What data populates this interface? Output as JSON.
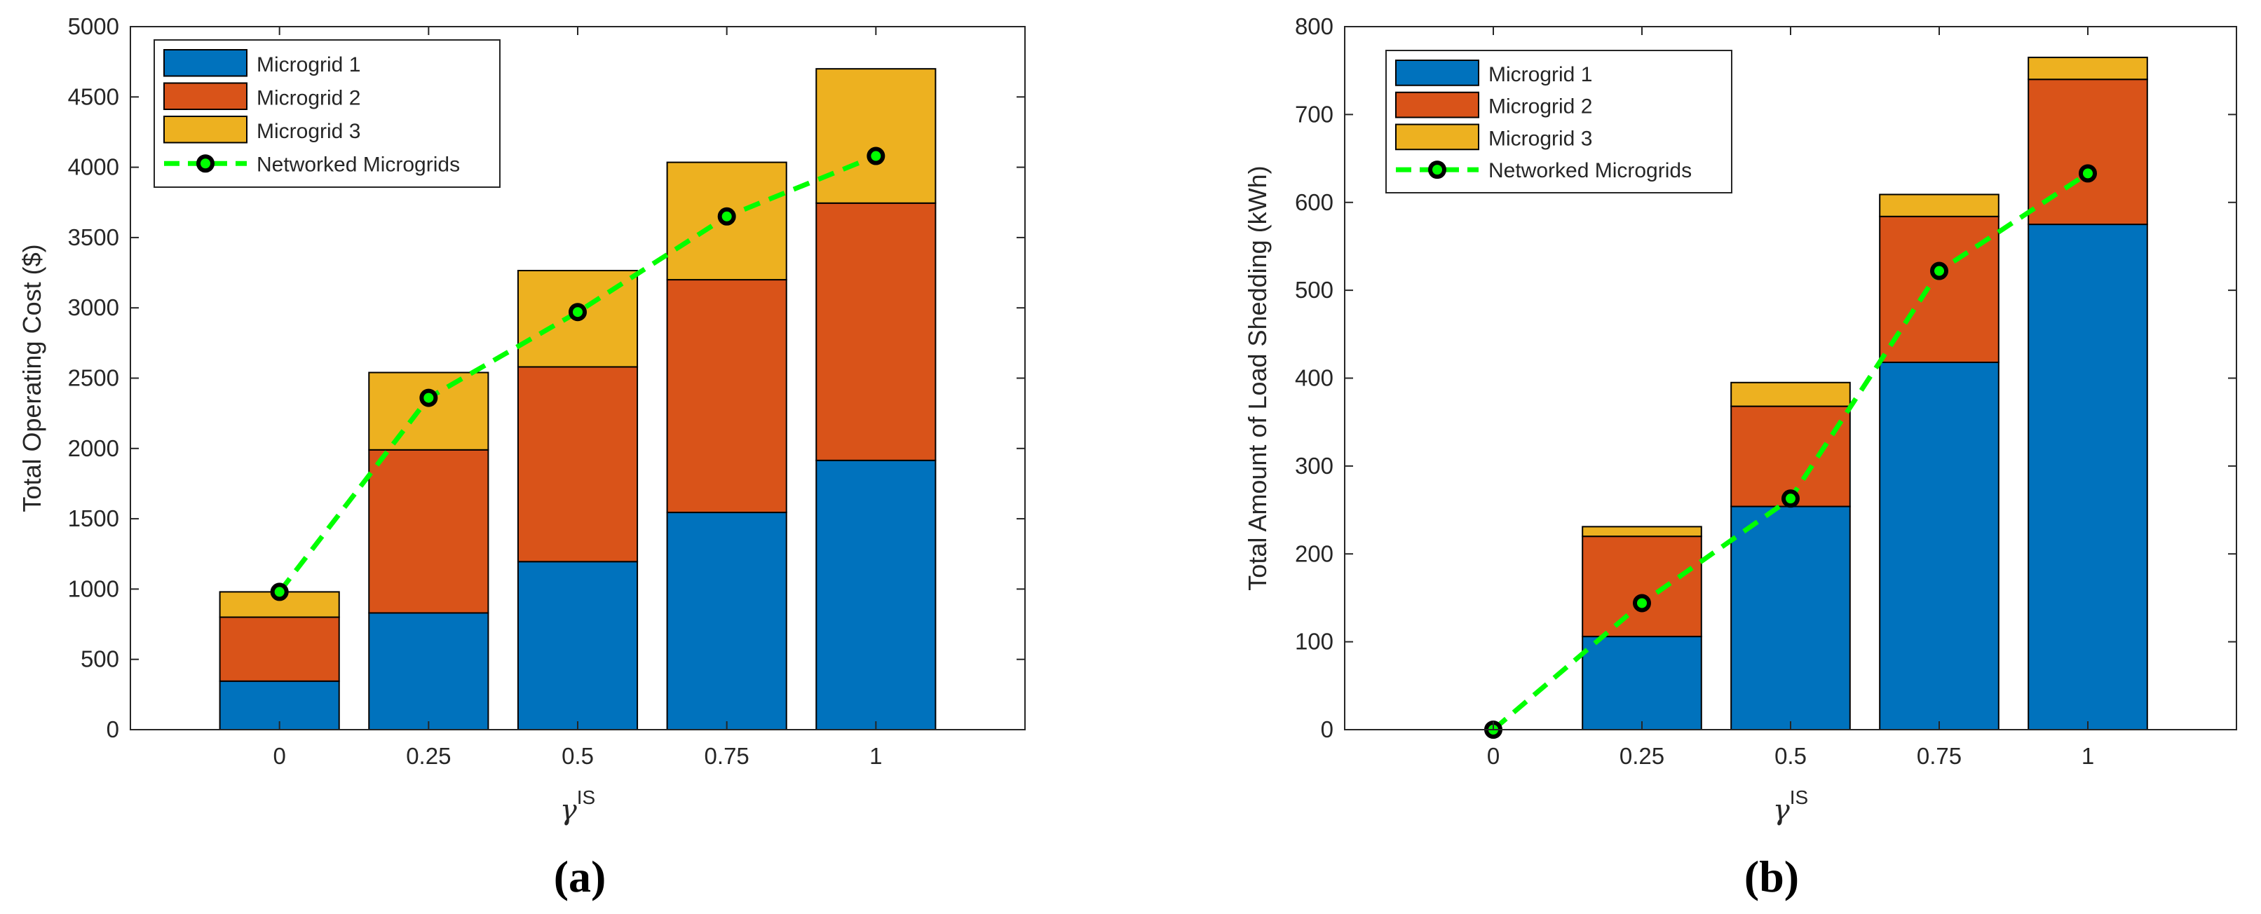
{
  "chart_data": [
    {
      "type": "bar",
      "stacked": true,
      "caption": "(a)",
      "title": "",
      "xlabel_base": "γ",
      "xlabel_sup": "IS",
      "ylabel": "Total Operating Cost ($)",
      "categories": [
        "0",
        "0.25",
        "0.5",
        "0.75",
        "1"
      ],
      "xlim": [
        -1,
        5
      ],
      "ylim": [
        0,
        5000
      ],
      "yticks": [
        0,
        500,
        1000,
        1500,
        2000,
        2500,
        3000,
        3500,
        4000,
        4500,
        5000
      ],
      "series": [
        {
          "name": "Microgrid 1",
          "color": "#0072bd",
          "values": [
            345,
            830,
            1195,
            1545,
            1915
          ]
        },
        {
          "name": "Microgrid 2",
          "color": "#d95319",
          "values": [
            455,
            1160,
            1385,
            1655,
            1830
          ]
        },
        {
          "name": "Microgrid 3",
          "color": "#edb120",
          "values": [
            180,
            550,
            685,
            835,
            955
          ]
        }
      ],
      "line_series": {
        "name": "Networked Microgrids",
        "line_color": "#00ff00",
        "marker_edge": "#000000",
        "values": [
          980,
          2360,
          2970,
          3650,
          4080
        ]
      },
      "legend_position": "top-left"
    },
    {
      "type": "bar",
      "stacked": true,
      "caption": "(b)",
      "title": "",
      "xlabel_base": "γ",
      "xlabel_sup": "IS",
      "ylabel": "Total Amount of Load Shedding (kWh)",
      "categories": [
        "0",
        "0.25",
        "0.5",
        "0.75",
        "1"
      ],
      "xlim": [
        -1,
        5
      ],
      "ylim": [
        0,
        800
      ],
      "yticks": [
        0,
        100,
        200,
        300,
        400,
        500,
        600,
        700,
        800
      ],
      "series": [
        {
          "name": "Microgrid 1",
          "color": "#0072bd",
          "values": [
            0,
            106,
            254,
            418,
            575
          ]
        },
        {
          "name": "Microgrid 2",
          "color": "#d95319",
          "values": [
            0,
            114,
            114,
            166,
            165
          ]
        },
        {
          "name": "Microgrid 3",
          "color": "#edb120",
          "values": [
            0,
            11,
            27,
            25,
            25
          ]
        }
      ],
      "line_series": {
        "name": "Networked Microgrids",
        "line_color": "#00ff00",
        "marker_edge": "#000000",
        "values": [
          0,
          144,
          263,
          522,
          633
        ]
      },
      "legend_position": "top-left"
    }
  ]
}
